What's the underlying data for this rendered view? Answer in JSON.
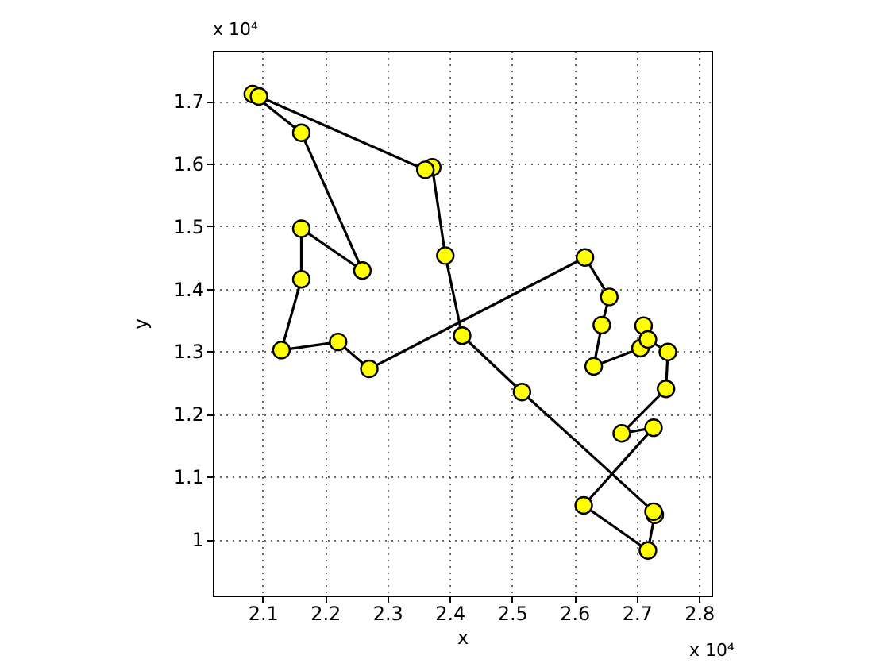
{
  "chart_data": {
    "type": "line",
    "xlabel": "x",
    "ylabel": "y",
    "annotations": [
      "x 10⁴",
      "x 10⁴"
    ],
    "xlim": [
      2.02,
      2.82
    ],
    "ylim": [
      0.91,
      1.78
    ],
    "xticks": [
      2.1,
      2.2,
      2.3,
      2.4,
      2.5,
      2.6,
      2.7,
      2.8
    ],
    "yticks": [
      1,
      1.1,
      1.2,
      1.3,
      1.4,
      1.5,
      1.6,
      1.7
    ],
    "x": [
      2.084,
      2.162,
      2.26,
      2.162,
      2.162,
      2.13,
      2.221,
      2.271,
      2.617,
      2.656,
      2.644,
      2.631,
      2.706,
      2.711,
      2.718,
      2.75,
      2.747,
      2.676,
      2.727,
      2.615,
      2.718,
      2.729,
      2.727,
      2.516,
      2.42,
      2.393,
      2.372,
      2.361,
      2.094
    ],
    "grid": true,
    "marker": "circle",
    "line_style": "solid",
    "series": [
      {
        "color": "#000000",
        "colors": [
          "#ffff00",
          "#ffff00",
          "#ffff00",
          "#ffff00",
          "#ffff00",
          "#ffff00",
          "#ffff00",
          "#ffff00",
          "#ffff00",
          "#ffff00",
          "#ffff00",
          "#ffff00",
          "#ffff00",
          "#ffff00",
          "#ffff00",
          "#ffff00",
          "#ffff00",
          "#ffff00",
          "#ffff00",
          "#ffff00",
          "#ffff00",
          "#ffff00",
          "#ffff00",
          "#ffff00",
          "#ffff00",
          "#ffff00",
          "#ffff00",
          "#ffff00",
          "#ffff00"
        ],
        "values": [
          1.711,
          1.649,
          1.429,
          1.496,
          1.415,
          1.302,
          1.315,
          1.272,
          1.45,
          1.387,
          1.342,
          1.276,
          1.305,
          1.341,
          1.319,
          1.299,
          1.24,
          1.169,
          1.178,
          1.054,
          0.982,
          1.039,
          1.044,
          1.235,
          1.325,
          1.453,
          1.594,
          1.59,
          1.707
        ]
      }
    ]
  }
}
